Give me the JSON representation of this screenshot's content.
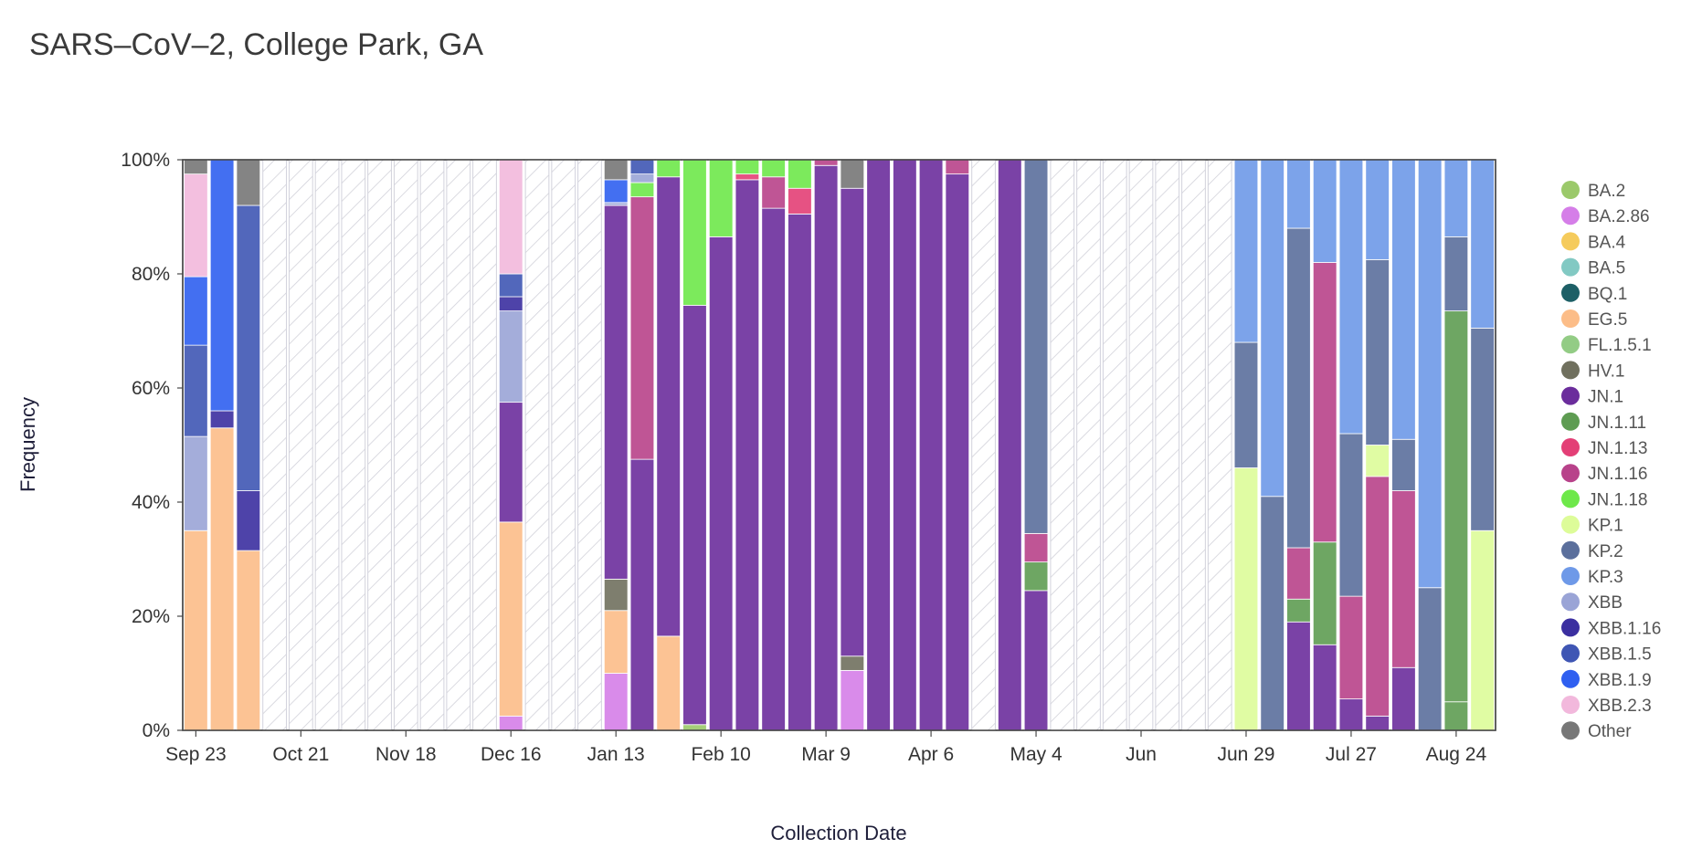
{
  "chart_data": {
    "type": "bar",
    "stacked": true,
    "title": "SARS–CoV–2, College Park, GA",
    "xlabel": "Collection Date",
    "ylabel": "Frequency",
    "ylim": [
      0,
      100
    ],
    "y_ticks": [
      "0%",
      "20%",
      "40%",
      "60%",
      "80%",
      "100%"
    ],
    "x_ticks": [
      {
        "label": "Sep 23",
        "week": 0
      },
      {
        "label": "Oct 21",
        "week": 4
      },
      {
        "label": "Nov 18",
        "week": 8
      },
      {
        "label": "Dec 16",
        "week": 12
      },
      {
        "label": "Jan 13",
        "week": 16
      },
      {
        "label": "Feb 10",
        "week": 20
      },
      {
        "label": "Mar 9",
        "week": 24
      },
      {
        "label": "Apr 6",
        "week": 28
      },
      {
        "label": "May 4",
        "week": 32
      },
      {
        "label": "Jun",
        "week": 36
      },
      {
        "label": "Jun 29",
        "week": 40
      },
      {
        "label": "Jul 27",
        "week": 44
      },
      {
        "label": "Aug 24",
        "week": 48
      }
    ],
    "legend": [
      {
        "name": "BA.2",
        "color": "#9bc96a"
      },
      {
        "name": "BA.2.86",
        "color": "#d57ee8"
      },
      {
        "name": "BA.4",
        "color": "#f5cb5c"
      },
      {
        "name": "BA.5",
        "color": "#82c9c3"
      },
      {
        "name": "BQ.1",
        "color": "#1d5f66"
      },
      {
        "name": "EG.5",
        "color": "#fcbd88"
      },
      {
        "name": "FL.1.5.1",
        "color": "#93cc85"
      },
      {
        "name": "HV.1",
        "color": "#70705e"
      },
      {
        "name": "JN.1",
        "color": "#6b2d9c"
      },
      {
        "name": "JN.1.11",
        "color": "#5e9c52"
      },
      {
        "name": "JN.1.13",
        "color": "#e33f76"
      },
      {
        "name": "JN.1.16",
        "color": "#b8428a"
      },
      {
        "name": "JN.1.18",
        "color": "#6ee84a"
      },
      {
        "name": "KP.1",
        "color": "#ddfc99"
      },
      {
        "name": "KP.2",
        "color": "#5b6f9c"
      },
      {
        "name": "KP.3",
        "color": "#6e99e8"
      },
      {
        "name": "XBB",
        "color": "#9aa4d6"
      },
      {
        "name": "XBB.1.16",
        "color": "#3b2fa0"
      },
      {
        "name": "XBB.1.5",
        "color": "#3f56b4"
      },
      {
        "name": "XBB.1.9",
        "color": "#2f5ff0"
      },
      {
        "name": "XBB.2.3",
        "color": "#f2b8dc"
      },
      {
        "name": "Other",
        "color": "#777777"
      }
    ],
    "bars": [
      {
        "week": 0,
        "stack": [
          [
            "EG.5",
            35
          ],
          [
            "XBB",
            16.5
          ],
          [
            "XBB.1.5",
            16
          ],
          [
            "XBB.1.9",
            12
          ],
          [
            "XBB.2.3",
            18
          ],
          [
            "Other",
            2.5
          ]
        ]
      },
      {
        "week": 1,
        "stack": [
          [
            "EG.5",
            53
          ],
          [
            "XBB.1.16",
            3
          ],
          [
            "XBB.1.9",
            44
          ]
        ]
      },
      {
        "week": 2,
        "stack": [
          [
            "EG.5",
            31.5
          ],
          [
            "XBB.1.16",
            10.5
          ],
          [
            "XBB.1.5",
            50
          ],
          [
            "Other",
            8
          ]
        ]
      },
      {
        "week": 3,
        "stack": []
      },
      {
        "week": 4,
        "stack": []
      },
      {
        "week": 5,
        "stack": []
      },
      {
        "week": 6,
        "stack": []
      },
      {
        "week": 7,
        "stack": []
      },
      {
        "week": 8,
        "stack": []
      },
      {
        "week": 9,
        "stack": []
      },
      {
        "week": 10,
        "stack": []
      },
      {
        "week": 11,
        "stack": []
      },
      {
        "week": 12,
        "stack": [
          [
            "BA.2.86",
            2.5
          ],
          [
            "EG.5",
            34
          ],
          [
            "JN.1",
            21
          ],
          [
            "XBB",
            16
          ],
          [
            "XBB.1.16",
            2.5
          ],
          [
            "XBB.1.5",
            4
          ],
          [
            "XBB.2.3",
            20
          ]
        ]
      },
      {
        "week": 13,
        "stack": []
      },
      {
        "week": 14,
        "stack": []
      },
      {
        "week": 15,
        "stack": []
      },
      {
        "week": 16,
        "stack": [
          [
            "BA.2.86",
            10
          ],
          [
            "EG.5",
            11
          ],
          [
            "HV.1",
            5.5
          ],
          [
            "JN.1",
            65.5
          ],
          [
            "XBB",
            0.5
          ],
          [
            "XBB.1.9",
            4
          ],
          [
            "Other",
            3.5
          ]
        ]
      },
      {
        "week": 17,
        "stack": [
          [
            "JN.1",
            47.5
          ],
          [
            "JN.1.16",
            46
          ],
          [
            "JN.1.18",
            2.5
          ],
          [
            "XBB",
            1.5
          ],
          [
            "XBB.1.5",
            2.5
          ]
        ]
      },
      {
        "week": 18,
        "stack": [
          [
            "EG.5",
            16.5
          ],
          [
            "JN.1",
            80.5
          ],
          [
            "JN.1.18",
            3
          ]
        ]
      },
      {
        "week": 19,
        "stack": [
          [
            "BA.2",
            1
          ],
          [
            "JN.1",
            73.5
          ],
          [
            "JN.1.18",
            25.5
          ]
        ]
      },
      {
        "week": 20,
        "stack": [
          [
            "JN.1",
            86.5
          ],
          [
            "JN.1.18",
            13.5
          ]
        ]
      },
      {
        "week": 21,
        "stack": [
          [
            "JN.1",
            96.5
          ],
          [
            "JN.1.13",
            1
          ],
          [
            "JN.1.18",
            2.5
          ]
        ]
      },
      {
        "week": 22,
        "stack": [
          [
            "JN.1",
            91.5
          ],
          [
            "JN.1.16",
            5.5
          ],
          [
            "JN.1.18",
            3
          ]
        ]
      },
      {
        "week": 23,
        "stack": [
          [
            "JN.1",
            90.5
          ],
          [
            "JN.1.13",
            4.5
          ],
          [
            "JN.1.18",
            5
          ]
        ]
      },
      {
        "week": 24,
        "stack": [
          [
            "JN.1",
            99
          ],
          [
            "JN.1.16",
            1
          ]
        ]
      },
      {
        "week": 25,
        "stack": [
          [
            "BA.2.86",
            10.5
          ],
          [
            "HV.1",
            2.5
          ],
          [
            "JN.1",
            82
          ],
          [
            "Other",
            5
          ]
        ]
      },
      {
        "week": 26,
        "stack": [
          [
            "JN.1",
            100
          ]
        ]
      },
      {
        "week": 27,
        "stack": [
          [
            "JN.1",
            100
          ]
        ]
      },
      {
        "week": 28,
        "stack": [
          [
            "JN.1",
            100
          ]
        ]
      },
      {
        "week": 29,
        "stack": [
          [
            "JN.1",
            97.5
          ],
          [
            "JN.1.16",
            2.5
          ]
        ]
      },
      {
        "week": 30,
        "stack": []
      },
      {
        "week": 31,
        "stack": [
          [
            "JN.1",
            100
          ]
        ]
      },
      {
        "week": 32,
        "stack": [
          [
            "JN.1",
            24.5
          ],
          [
            "JN.1.11",
            5
          ],
          [
            "JN.1.16",
            5
          ],
          [
            "KP.2",
            65.5
          ]
        ]
      },
      {
        "week": 33,
        "stack": []
      },
      {
        "week": 34,
        "stack": []
      },
      {
        "week": 35,
        "stack": []
      },
      {
        "week": 36,
        "stack": []
      },
      {
        "week": 37,
        "stack": []
      },
      {
        "week": 38,
        "stack": []
      },
      {
        "week": 39,
        "stack": []
      },
      {
        "week": 40,
        "stack": [
          [
            "KP.1",
            46
          ],
          [
            "KP.2",
            22
          ],
          [
            "KP.3",
            32
          ]
        ]
      },
      {
        "week": 41,
        "stack": [
          [
            "KP.2",
            41
          ],
          [
            "KP.3",
            59
          ]
        ]
      },
      {
        "week": 42,
        "stack": [
          [
            "JN.1",
            19
          ],
          [
            "JN.1.11",
            4
          ],
          [
            "JN.1.16",
            9
          ],
          [
            "KP.2",
            56
          ],
          [
            "KP.3",
            12
          ]
        ]
      },
      {
        "week": 43,
        "stack": [
          [
            "JN.1",
            15
          ],
          [
            "JN.1.11",
            18
          ],
          [
            "JN.1.16",
            49
          ],
          [
            "KP.3",
            18
          ]
        ]
      },
      {
        "week": 44,
        "stack": [
          [
            "JN.1",
            5.5
          ],
          [
            "JN.1.16",
            18
          ],
          [
            "KP.2",
            28.5
          ],
          [
            "KP.3",
            48
          ]
        ]
      },
      {
        "week": 45,
        "stack": [
          [
            "JN.1",
            2.5
          ],
          [
            "JN.1.16",
            42
          ],
          [
            "KP.1",
            5.5
          ],
          [
            "KP.2",
            32.5
          ],
          [
            "KP.3",
            17.5
          ]
        ]
      },
      {
        "week": 46,
        "stack": [
          [
            "JN.1",
            11
          ],
          [
            "JN.1.16",
            31
          ],
          [
            "KP.2",
            9
          ],
          [
            "KP.3",
            49
          ]
        ]
      },
      {
        "week": 47,
        "stack": [
          [
            "KP.2",
            25
          ],
          [
            "KP.3",
            75
          ]
        ]
      },
      {
        "week": 48,
        "stack": [
          [
            "JN.1.11",
            5
          ],
          [
            "JN.1.11",
            68.5
          ],
          [
            "KP.2",
            13
          ],
          [
            "KP.3",
            13.5
          ]
        ]
      },
      {
        "week": 49,
        "stack": [
          [
            "KP.1",
            35
          ],
          [
            "KP.2",
            35.5
          ],
          [
            "KP.3",
            29.5
          ]
        ]
      }
    ]
  }
}
